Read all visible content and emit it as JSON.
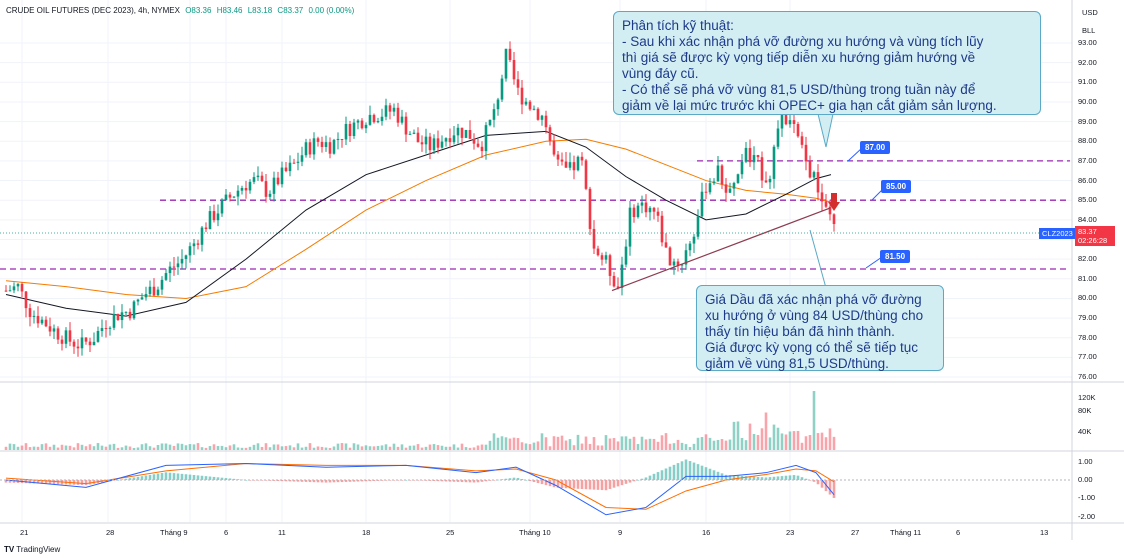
{
  "header": {
    "symbol": "CRUDE OIL FUTURES (DEC 2023), 4h, NYMEX",
    "open": "O83.36",
    "high": "H83.46",
    "low": "L83.18",
    "close": "C83.37",
    "change": "0.00 (0.00%)"
  },
  "axis": {
    "currency": "USD",
    "unit": "BLL",
    "price_ticks": [
      "93.00",
      "92.00",
      "91.00",
      "90.00",
      "89.00",
      "88.00",
      "87.00",
      "86.00",
      "85.00",
      "84.00",
      "83.00",
      "82.00",
      "81.00",
      "80.00",
      "79.00",
      "78.00",
      "77.00",
      "76.00"
    ],
    "volume_ticks": [
      "120K",
      "80K",
      "40K"
    ],
    "macd_ticks": [
      "1.00",
      "0.00",
      "-1.00",
      "-2.00"
    ],
    "x_ticks": [
      "21",
      "28",
      "Tháng 9",
      "6",
      "11",
      "18",
      "25",
      "Tháng 10",
      "9",
      "16",
      "23",
      "27",
      "Tháng 11",
      "6",
      "13"
    ]
  },
  "current": {
    "symbol_tag": "CLZ2023",
    "price": "83.37",
    "countdown": "02:26:28"
  },
  "levels": [
    {
      "label": "87.00",
      "price": 87.0
    },
    {
      "label": "85.00",
      "price": 85.0
    },
    {
      "label": "81.50",
      "price": 81.5
    }
  ],
  "callout_top": {
    "lines": [
      "Phân tích kỹ thuật:",
      "- Sau khi xác nhận phá vỡ đường xu hướng và vùng tích lũy",
      "thì giá sẽ được kỳ vọng tiếp diễn xu hướng giảm hướng về",
      "vùng đáy cũ.",
      "- Có thể sẽ phá vỡ vùng 81,5 USD/thùng trong tuần này để",
      "giảm về lại mức trước khi OPEC+ gia hạn cắt giảm sản lượng."
    ]
  },
  "callout_bottom": {
    "lines": [
      "Giá Dầu đã xác nhận phá vỡ đường",
      "xu hướng ở vùng 84 USD/thùng cho",
      "thấy tín hiệu bán đã hình thành.",
      "Giá được kỳ vọng có thể sẽ tiếp tục",
      "giảm về vùng 81,5 USD/thùng."
    ]
  },
  "branding": {
    "logo": "TV",
    "name": "TradingView"
  },
  "colors": {
    "up": "#089981",
    "down": "#f23645",
    "ma_fast": "#131722",
    "ma_slow": "#f57c00",
    "level_line": "#9c27b0",
    "trendline": "#8e3b4f",
    "macd_line": "#2962ff",
    "signal_line": "#ff6d00",
    "accent": "#2962ff"
  },
  "chart_data": {
    "type": "line",
    "timeframe": "4h",
    "ylim": [
      76,
      93.5
    ],
    "price_path": [
      [
        0,
        80.4
      ],
      [
        12,
        80.6
      ],
      [
        25,
        79.3
      ],
      [
        38,
        78.8
      ],
      [
        50,
        78.3
      ],
      [
        62,
        77.9
      ],
      [
        75,
        77.6
      ],
      [
        88,
        78.0
      ],
      [
        100,
        78.8
      ],
      [
        112,
        79.2
      ],
      [
        125,
        79.4
      ],
      [
        138,
        80.2
      ],
      [
        150,
        80.6
      ],
      [
        162,
        81.4
      ],
      [
        175,
        81.9
      ],
      [
        188,
        82.8
      ],
      [
        200,
        83.8
      ],
      [
        212,
        84.5
      ],
      [
        225,
        85.2
      ],
      [
        238,
        85.8
      ],
      [
        250,
        86.0
      ],
      [
        262,
        85.4
      ],
      [
        275,
        86.2
      ],
      [
        288,
        86.8
      ],
      [
        300,
        87.6
      ],
      [
        312,
        88.0
      ],
      [
        325,
        87.8
      ],
      [
        338,
        88.5
      ],
      [
        350,
        88.9
      ],
      [
        362,
        89.3
      ],
      [
        375,
        89.4
      ],
      [
        388,
        89.6
      ],
      [
        400,
        88.7
      ],
      [
        412,
        88.0
      ],
      [
        425,
        87.7
      ],
      [
        438,
        88.2
      ],
      [
        450,
        88.6
      ],
      [
        462,
        88.4
      ],
      [
        475,
        87.8
      ],
      [
        488,
        89.4
      ],
      [
        500,
        92.3
      ],
      [
        512,
        90.5
      ],
      [
        525,
        89.8
      ],
      [
        538,
        89.2
      ],
      [
        550,
        86.8
      ],
      [
        562,
        86.4
      ],
      [
        575,
        87.1
      ],
      [
        588,
        82.6
      ],
      [
        600,
        81.8
      ],
      [
        612,
        80.6
      ],
      [
        625,
        84.5
      ],
      [
        638,
        84.8
      ],
      [
        650,
        84.3
      ],
      [
        662,
        82.0
      ],
      [
        675,
        81.8
      ],
      [
        688,
        83.4
      ],
      [
        700,
        85.8
      ],
      [
        712,
        86.4
      ],
      [
        725,
        85.2
      ],
      [
        738,
        87.4
      ],
      [
        750,
        86.9
      ],
      [
        762,
        86.0
      ],
      [
        775,
        89.4
      ],
      [
        788,
        88.6
      ],
      [
        800,
        86.9
      ],
      [
        812,
        85.6
      ],
      [
        820,
        84.3
      ],
      [
        830,
        83.4
      ]
    ],
    "ma_fast_path": [
      [
        0,
        80.2
      ],
      [
        60,
        79.5
      ],
      [
        120,
        79.1
      ],
      [
        180,
        79.8
      ],
      [
        240,
        82.0
      ],
      [
        300,
        84.5
      ],
      [
        360,
        86.3
      ],
      [
        420,
        87.3
      ],
      [
        480,
        88.3
      ],
      [
        540,
        88.5
      ],
      [
        580,
        87.7
      ],
      [
        620,
        86.2
      ],
      [
        660,
        85.0
      ],
      [
        700,
        84.0
      ],
      [
        740,
        84.3
      ],
      [
        780,
        85.3
      ],
      [
        810,
        86.1
      ],
      [
        825,
        86.3
      ]
    ],
    "ma_slow_path": [
      [
        0,
        80.9
      ],
      [
        60,
        80.6
      ],
      [
        120,
        80.2
      ],
      [
        180,
        80.0
      ],
      [
        240,
        80.6
      ],
      [
        300,
        82.5
      ],
      [
        360,
        84.5
      ],
      [
        420,
        86.0
      ],
      [
        480,
        87.3
      ],
      [
        540,
        88.0
      ],
      [
        580,
        88.1
      ],
      [
        620,
        87.6
      ],
      [
        660,
        86.8
      ],
      [
        700,
        86.0
      ],
      [
        740,
        85.5
      ],
      [
        780,
        85.3
      ],
      [
        810,
        85.1
      ],
      [
        825,
        84.9
      ]
    ],
    "trendline": [
      [
        612,
        80.4
      ],
      [
        830,
        84.6
      ]
    ],
    "volume_max": 120,
    "macd_ylim": [
      -2.2,
      1.2
    ],
    "macd_path": [
      [
        0,
        0.0
      ],
      [
        80,
        -0.4
      ],
      [
        160,
        0.8
      ],
      [
        240,
        0.9
      ],
      [
        320,
        0.7
      ],
      [
        400,
        0.8
      ],
      [
        470,
        0.4
      ],
      [
        510,
        0.7
      ],
      [
        550,
        -0.3
      ],
      [
        600,
        -1.9
      ],
      [
        640,
        -1.5
      ],
      [
        680,
        0.2
      ],
      [
        720,
        0.2
      ],
      [
        760,
        0.4
      ],
      [
        790,
        0.8
      ],
      [
        810,
        0.4
      ],
      [
        828,
        -0.8
      ]
    ],
    "signal_path": [
      [
        0,
        0.1
      ],
      [
        80,
        -0.2
      ],
      [
        160,
        0.5
      ],
      [
        240,
        0.9
      ],
      [
        320,
        0.8
      ],
      [
        400,
        0.8
      ],
      [
        470,
        0.5
      ],
      [
        510,
        0.6
      ],
      [
        550,
        0.0
      ],
      [
        600,
        -1.5
      ],
      [
        640,
        -1.6
      ],
      [
        680,
        -0.6
      ],
      [
        720,
        0.0
      ],
      [
        760,
        0.3
      ],
      [
        790,
        0.6
      ],
      [
        810,
        0.5
      ],
      [
        828,
        -0.1
      ]
    ]
  }
}
